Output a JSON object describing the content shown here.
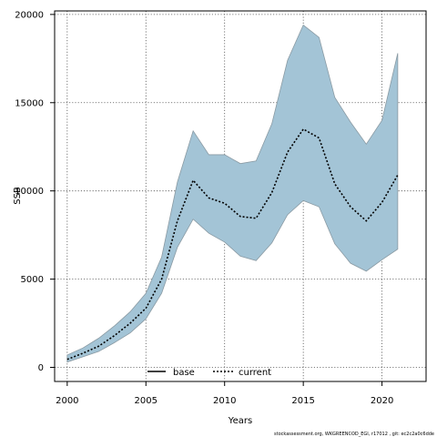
{
  "chart_data": {
    "type": "line",
    "xlabel": "Years",
    "ylabel": "SSB",
    "xlim": [
      1999.2,
      2022.8
    ],
    "ylim": [
      -800,
      20200
    ],
    "xticks": [
      2000,
      2005,
      2010,
      2015,
      2020
    ],
    "yticks": [
      0,
      5000,
      10000,
      15000,
      20000
    ],
    "grid": true,
    "legend_position": "bottom-center",
    "band_color": "#a3c4d6",
    "band_edge_color": "#8a9aa3",
    "x": [
      2000,
      2001,
      2002,
      2003,
      2004,
      2005,
      2006,
      2007,
      2008,
      2009,
      2010,
      2011,
      2012,
      2013,
      2014,
      2015,
      2016,
      2017,
      2018,
      2019,
      2020,
      2021
    ],
    "band_upper": [
      700,
      1100,
      1650,
      2350,
      3150,
      4200,
      6250,
      10500,
      13400,
      12050,
      12050,
      11550,
      11700,
      13800,
      17400,
      19400,
      18700,
      15300,
      13900,
      12650,
      14000,
      17800
    ],
    "band_lower": [
      300,
      600,
      900,
      1400,
      1950,
      2750,
      4200,
      6800,
      8400,
      7600,
      7100,
      6300,
      6050,
      7050,
      8650,
      9450,
      9100,
      7000,
      5900,
      5450,
      6100,
      6700
    ],
    "series": [
      {
        "name": "current",
        "style": "dotted",
        "color": "#000000",
        "values": [
          450,
          800,
          1200,
          1800,
          2500,
          3350,
          5000,
          8300,
          10600,
          9600,
          9300,
          8550,
          8450,
          9900,
          12200,
          13500,
          13000,
          10400,
          9100,
          8300,
          9350,
          10900
        ]
      }
    ],
    "legend": [
      {
        "label": "base",
        "style": "solid"
      },
      {
        "label": "current",
        "style": "dotted"
      }
    ]
  },
  "footer": {
    "credit": "stockassessment.org, WKGREENCOD_EGI, r17012 , git: ec2c2a0c6dde"
  }
}
